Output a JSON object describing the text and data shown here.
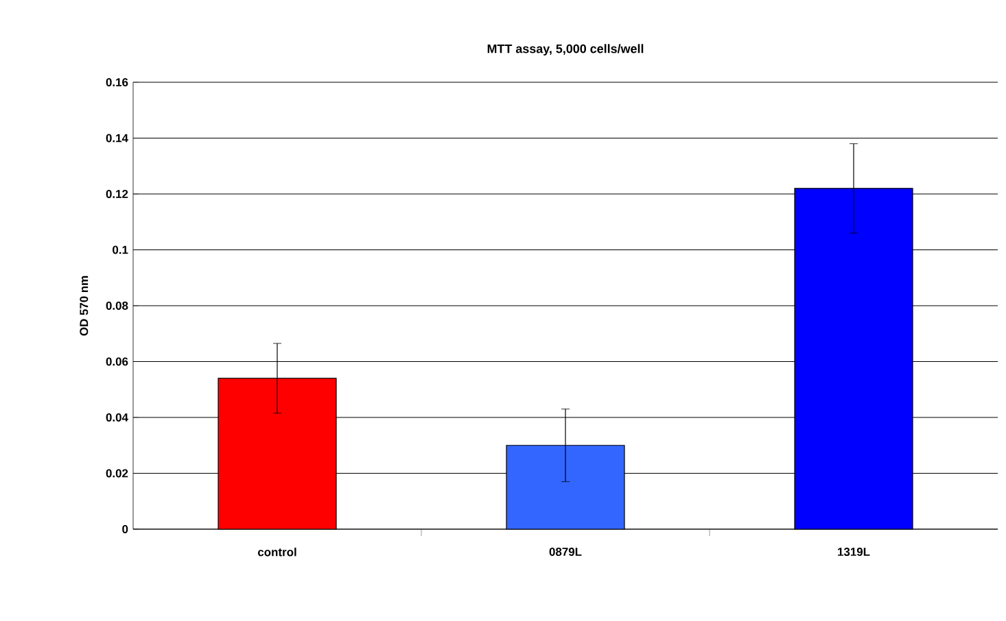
{
  "chart_data": {
    "type": "bar",
    "title": "MTT assay, 5,000 cells/well",
    "ylabel": "OD 570 nm",
    "categories": [
      "control",
      "0879L",
      "1319L"
    ],
    "values": [
      0.054,
      0.03,
      0.122
    ],
    "errors": [
      0.0125,
      0.013,
      0.016
    ],
    "colors": [
      "#ff0000",
      "#3366ff",
      "#0000ff"
    ],
    "ylim": [
      0,
      0.16
    ],
    "yticks": [
      0,
      0.02,
      0.04,
      0.06,
      0.08,
      0.1,
      0.12,
      0.14,
      0.16
    ],
    "grid": "y"
  }
}
